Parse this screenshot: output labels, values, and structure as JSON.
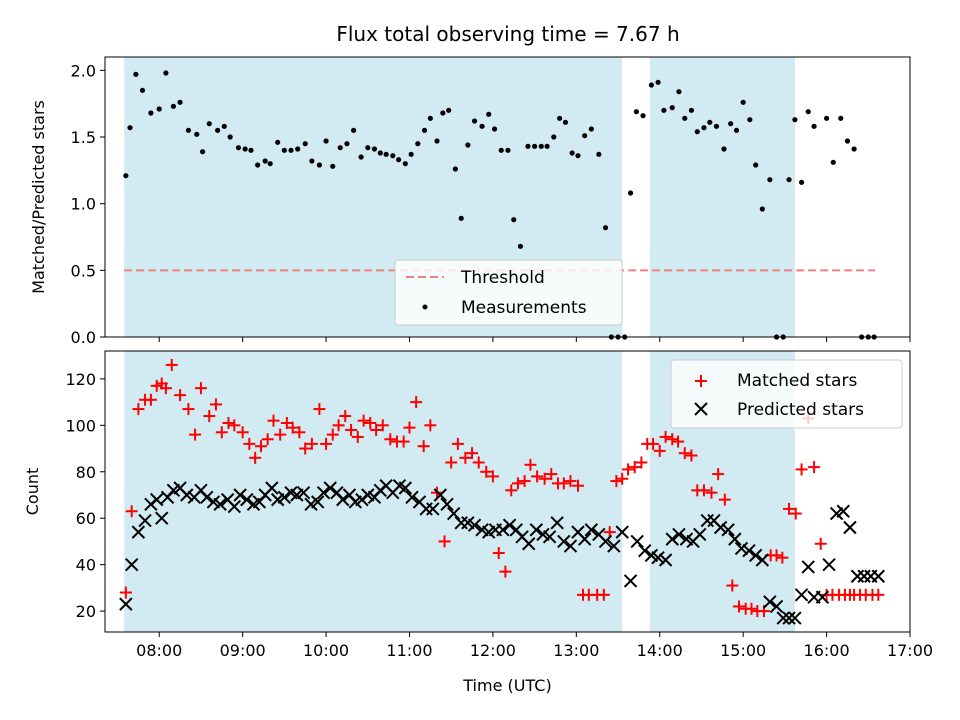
{
  "title": "Flux total observing time = 7.67 h",
  "colors": {
    "shade": "#add8e6",
    "measurement": "#000000",
    "threshold": "#f08080",
    "matched": "#ff0000",
    "predicted": "#000000"
  },
  "chart_data": [
    {
      "type": "scatter",
      "ylabel": "Matched/Predicted stars",
      "xlim": [
        7.35,
        17.0
      ],
      "ylim": [
        0,
        2.1
      ],
      "yticks": [
        0.0,
        0.5,
        1.0,
        1.5,
        2.0
      ],
      "ytick_labels": [
        "0.0",
        "0.5",
        "1.0",
        "1.5",
        "2.0"
      ],
      "shaded_intervals": [
        [
          7.58,
          13.55
        ],
        [
          13.88,
          15.62
        ]
      ],
      "legend": {
        "placement": "lower-center",
        "entries": [
          "Threshold",
          "Measurements"
        ]
      },
      "threshold": {
        "name": "Threshold",
        "y": 0.5,
        "x_range": [
          7.58,
          16.58
        ]
      },
      "series": [
        {
          "name": "Measurements",
          "marker": "dot",
          "x": [
            7.6,
            7.65,
            7.72,
            7.8,
            7.9,
            8.0,
            8.08,
            8.17,
            8.25,
            8.35,
            8.45,
            8.52,
            8.6,
            8.7,
            8.78,
            8.85,
            8.95,
            9.03,
            9.1,
            9.18,
            9.27,
            9.33,
            9.42,
            9.5,
            9.58,
            9.66,
            9.75,
            9.83,
            9.92,
            10.0,
            10.08,
            10.17,
            10.25,
            10.33,
            10.42,
            10.5,
            10.58,
            10.65,
            10.72,
            10.8,
            10.87,
            10.95,
            11.02,
            11.1,
            11.18,
            11.25,
            11.33,
            11.4,
            11.47,
            11.55,
            11.62,
            11.7,
            11.78,
            11.87,
            11.95,
            12.02,
            12.1,
            12.18,
            12.25,
            12.33,
            12.42,
            12.5,
            12.58,
            12.65,
            12.73,
            12.8,
            12.87,
            12.95,
            13.02,
            13.1,
            13.18,
            13.27,
            13.35,
            13.42,
            13.5,
            13.58,
            13.65,
            13.72,
            13.8,
            13.9,
            13.98,
            14.05,
            14.15,
            14.23,
            14.3,
            14.38,
            14.45,
            14.53,
            14.6,
            14.68,
            14.77,
            14.85,
            14.92,
            15.0,
            15.08,
            15.15,
            15.23,
            15.32,
            15.4,
            15.48,
            15.55,
            15.62,
            15.7,
            15.78,
            15.85,
            16.0,
            16.08,
            16.17,
            16.25,
            16.33,
            16.42,
            16.5,
            16.57
          ],
          "y": [
            1.21,
            1.57,
            1.97,
            1.85,
            1.68,
            1.71,
            1.98,
            1.73,
            1.76,
            1.55,
            1.52,
            1.39,
            1.6,
            1.55,
            1.58,
            1.5,
            1.42,
            1.41,
            1.4,
            1.29,
            1.32,
            1.3,
            1.46,
            1.4,
            1.4,
            1.41,
            1.45,
            1.32,
            1.29,
            1.47,
            1.28,
            1.42,
            1.45,
            1.55,
            1.35,
            1.42,
            1.41,
            1.38,
            1.37,
            1.36,
            1.33,
            1.3,
            1.37,
            1.45,
            1.55,
            1.64,
            1.47,
            1.68,
            1.7,
            1.26,
            0.89,
            1.44,
            1.62,
            1.58,
            1.67,
            1.56,
            1.4,
            1.4,
            0.88,
            0.68,
            1.43,
            1.43,
            1.43,
            1.43,
            1.5,
            1.64,
            1.61,
            1.38,
            1.36,
            1.51,
            1.56,
            1.37,
            0.82,
            0.0,
            0.0,
            0.0,
            1.08,
            1.69,
            1.66,
            1.89,
            1.91,
            1.7,
            1.72,
            1.84,
            1.64,
            1.7,
            1.54,
            1.57,
            1.61,
            1.58,
            1.41,
            1.6,
            1.55,
            1.76,
            1.63,
            1.29,
            0.96,
            1.18,
            0.0,
            0.0,
            1.18,
            1.63,
            1.16,
            1.69,
            1.58,
            1.64,
            1.31,
            1.64,
            1.47,
            1.41,
            0.0,
            0.0,
            0.0
          ]
        }
      ]
    },
    {
      "type": "scatter",
      "ylabel": "Count",
      "xlabel": "Time (UTC)",
      "xlim": [
        7.35,
        17.0
      ],
      "ylim": [
        11,
        132
      ],
      "yticks": [
        20,
        40,
        60,
        80,
        100,
        120
      ],
      "ytick_labels": [
        "20",
        "40",
        "60",
        "80",
        "100",
        "120"
      ],
      "xticks": [
        8,
        9,
        10,
        11,
        12,
        13,
        14,
        15,
        16,
        17
      ],
      "xtick_labels": [
        "08:00",
        "09:00",
        "10:00",
        "11:00",
        "12:00",
        "13:00",
        "14:00",
        "15:00",
        "16:00",
        "17:00"
      ],
      "shaded_intervals": [
        [
          7.58,
          13.55
        ],
        [
          13.88,
          15.62
        ]
      ],
      "legend": {
        "placement": "upper-right",
        "entries": [
          "Matched stars",
          "Predicted stars"
        ]
      },
      "series": [
        {
          "name": "Matched stars",
          "marker": "plus",
          "x": [
            7.6,
            7.67,
            7.75,
            7.83,
            7.9,
            7.97,
            8.03,
            8.08,
            8.15,
            8.25,
            8.35,
            8.43,
            8.5,
            8.6,
            8.68,
            8.75,
            8.83,
            8.9,
            9.0,
            9.08,
            9.15,
            9.22,
            9.3,
            9.37,
            9.45,
            9.53,
            9.6,
            9.68,
            9.75,
            9.83,
            9.92,
            10.0,
            10.08,
            10.15,
            10.23,
            10.3,
            10.38,
            10.45,
            10.53,
            10.6,
            10.68,
            10.77,
            10.85,
            10.93,
            11.0,
            11.08,
            11.17,
            11.25,
            11.33,
            11.42,
            11.5,
            11.58,
            11.67,
            11.75,
            11.83,
            11.92,
            12.0,
            12.07,
            12.15,
            12.22,
            12.3,
            12.38,
            12.45,
            12.53,
            12.62,
            12.7,
            12.78,
            12.85,
            12.93,
            13.02,
            13.08,
            13.15,
            13.25,
            13.33,
            13.4,
            13.48,
            13.55,
            13.62,
            13.7,
            13.78,
            13.85,
            13.92,
            14.0,
            14.07,
            14.15,
            14.22,
            14.3,
            14.38,
            14.45,
            14.53,
            14.62,
            14.7,
            14.78,
            14.87,
            14.95,
            15.03,
            15.1,
            15.17,
            15.25,
            15.33,
            15.4,
            15.47,
            15.55,
            15.63,
            15.7,
            15.78,
            15.85,
            15.93,
            16.0,
            16.07,
            16.15,
            16.22,
            16.28,
            16.33,
            16.4,
            16.47,
            16.55,
            16.62
          ],
          "y": [
            28,
            63,
            107,
            111,
            111,
            117,
            118,
            116,
            126,
            113,
            107,
            96,
            116,
            104,
            109,
            97,
            101,
            100,
            97,
            92,
            86,
            91,
            94,
            102,
            96,
            101,
            99,
            97,
            90,
            92,
            107,
            92,
            96,
            100,
            104,
            98,
            95,
            102,
            101,
            98,
            100,
            94,
            93,
            93,
            99,
            110,
            91,
            100,
            71,
            50,
            84,
            92,
            86,
            88,
            84,
            80,
            78,
            45,
            37,
            72,
            75,
            76,
            83,
            78,
            77,
            79,
            75,
            75,
            76,
            74,
            27,
            27,
            27,
            27,
            54,
            76,
            77,
            81,
            82,
            84,
            92,
            92,
            89,
            95,
            94,
            93,
            88,
            87,
            72,
            72,
            71,
            79,
            68,
            31,
            22,
            21,
            21,
            20,
            20,
            44,
            44,
            43,
            64,
            62,
            81,
            103,
            82,
            49,
            27,
            27,
            27,
            27,
            27,
            27,
            27,
            27,
            27,
            27
          ],
          "note_unused_tail": 0
        },
        {
          "name": "Predicted stars",
          "marker": "x",
          "x": [
            7.6,
            7.67,
            7.75,
            7.83,
            7.9,
            7.97,
            8.03,
            8.1,
            8.17,
            8.25,
            8.33,
            8.42,
            8.5,
            8.57,
            8.65,
            8.73,
            8.82,
            8.9,
            8.97,
            9.05,
            9.13,
            9.2,
            9.27,
            9.35,
            9.42,
            9.5,
            9.58,
            9.65,
            9.73,
            9.82,
            9.9,
            9.97,
            10.05,
            10.13,
            10.2,
            10.28,
            10.35,
            10.43,
            10.5,
            10.58,
            10.65,
            10.72,
            10.8,
            10.88,
            10.95,
            11.03,
            11.12,
            11.2,
            11.28,
            11.37,
            11.45,
            11.53,
            11.62,
            11.7,
            11.78,
            11.87,
            11.95,
            12.03,
            12.12,
            12.2,
            12.28,
            12.35,
            12.43,
            12.52,
            12.6,
            12.68,
            12.77,
            12.85,
            12.93,
            13.02,
            13.1,
            13.18,
            13.27,
            13.35,
            13.45,
            13.55,
            13.65,
            13.73,
            13.82,
            13.9,
            13.98,
            14.07,
            14.15,
            14.23,
            14.32,
            14.4,
            14.48,
            14.57,
            14.65,
            14.73,
            14.82,
            14.9,
            14.98,
            15.07,
            15.15,
            15.23,
            15.32,
            15.4,
            15.48,
            15.55,
            15.62,
            15.7,
            15.78,
            15.85,
            15.95,
            16.03,
            16.12,
            16.2,
            16.28,
            16.37,
            16.45,
            16.53,
            16.62
          ],
          "y": [
            23,
            40,
            54,
            59,
            66,
            68,
            60,
            69,
            72,
            73,
            70,
            69,
            72,
            69,
            67,
            66,
            68,
            65,
            70,
            68,
            66,
            67,
            70,
            73,
            68,
            69,
            71,
            70,
            71,
            66,
            67,
            71,
            73,
            71,
            68,
            70,
            67,
            68,
            70,
            69,
            72,
            74,
            71,
            74,
            73,
            69,
            67,
            64,
            64,
            70,
            66,
            62,
            58,
            58,
            57,
            55,
            54,
            55,
            55,
            57,
            55,
            52,
            49,
            55,
            53,
            52,
            58,
            50,
            48,
            54,
            51,
            55,
            53,
            50,
            48,
            54,
            33,
            50,
            46,
            44,
            43,
            42,
            51,
            53,
            51,
            50,
            53,
            59,
            59,
            56,
            55,
            51,
            47,
            46,
            44,
            42,
            24,
            22,
            17,
            17,
            17,
            27,
            39,
            26,
            26,
            40,
            62,
            63,
            56,
            35,
            35,
            35,
            35
          ],
          "note_unused_tail": 0
        }
      ]
    }
  ]
}
